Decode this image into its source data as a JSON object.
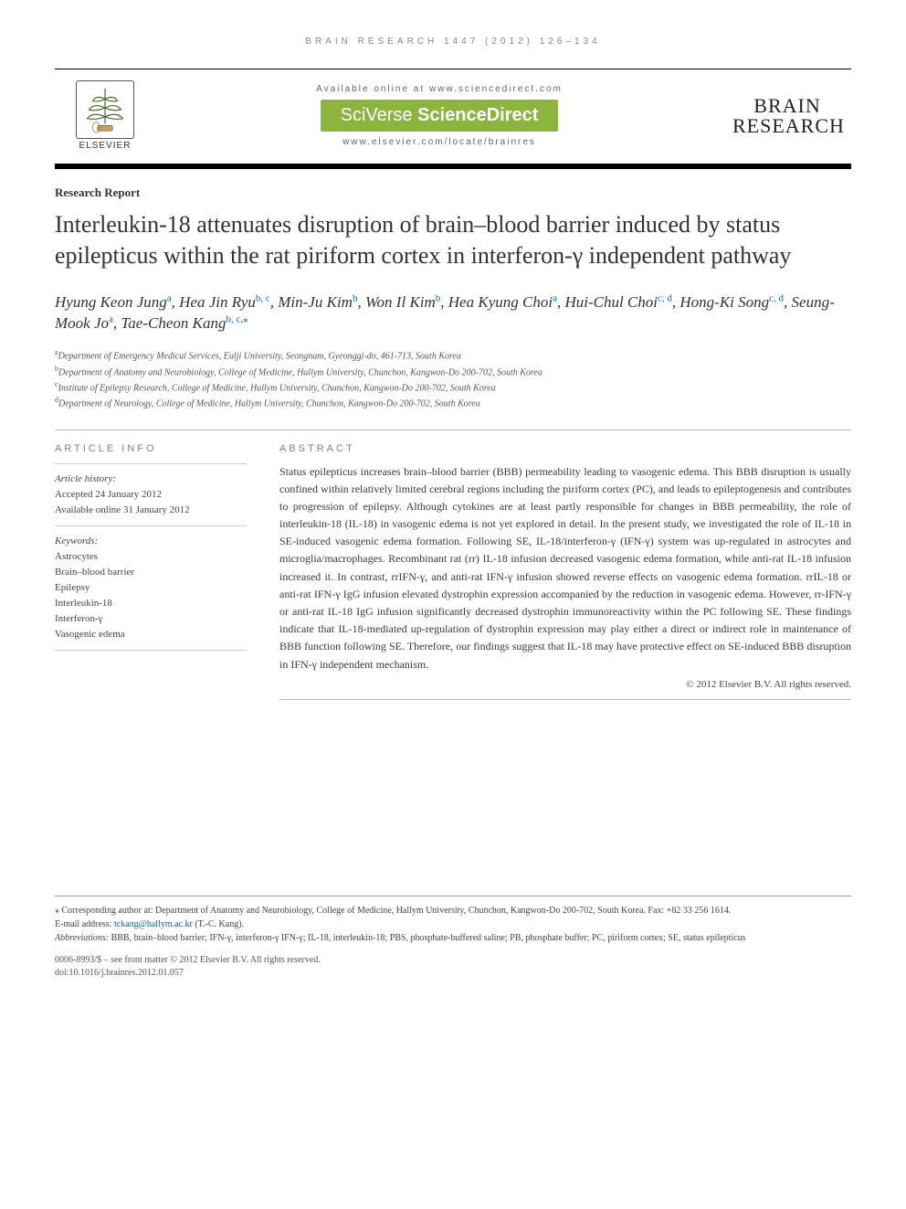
{
  "running_head": "BRAIN RESEARCH 1447 (2012) 126–134",
  "masthead": {
    "elsevier": "ELSEVIER",
    "available_text": "Available online at www.sciencedirect.com",
    "sciverse_light": "SciVerse ",
    "sciverse_bold": "ScienceDirect",
    "locator": "www.elsevier.com/locate/brainres",
    "journal_line1": "BRAIN",
    "journal_line2": "RESEARCH"
  },
  "section_label": "Research Report",
  "title": "Interleukin-18 attenuates disruption of brain–blood barrier induced by status epilepticus within the rat piriform cortex in interferon-γ independent pathway",
  "authors_html": "Hyung Keon Jung<sup class='sup'>a</sup>, Hea Jin Ryu<sup class='sup'>b, c</sup>, Min-Ju Kim<sup class='sup'>b</sup>, Won Il Kim<sup class='sup'>b</sup>, Hea Kyung Choi<sup class='sup'>a</sup>, Hui-Chul Choi<sup class='sup'>c, d</sup>, Hong-Ki Song<sup class='sup'>c, d</sup>, Seung-Mook Jo<sup class='sup'>a</sup>, Tae-Cheon Kang<sup class='sup'>b, c,</sup><sup class='sup'>⁎</sup>",
  "affiliations": [
    {
      "sup": "a",
      "text": "Department of Emergency Medical Services, Eulji University, Seongnam, Gyeonggi-do, 461-713, South Korea"
    },
    {
      "sup": "b",
      "text": "Department of Anatomy and Neurobiology, College of Medicine, Hallym University, Chunchon, Kangwon-Do 200-702, South Korea"
    },
    {
      "sup": "c",
      "text": "Institute of Epilepsy Research, College of Medicine, Hallym University, Chunchon, Kangwon-Do 200-702, South Korea"
    },
    {
      "sup": "d",
      "text": "Department of Neurology, College of Medicine, Hallym University, Chunchon, Kangwon-Do 200-702, South Korea"
    }
  ],
  "article_info_head": "ARTICLE INFO",
  "abstract_head": "ABSTRACT",
  "history": {
    "label": "Article history:",
    "accepted": "Accepted 24 January 2012",
    "online": "Available online 31 January 2012"
  },
  "keywords_label": "Keywords:",
  "keywords": [
    "Astrocytes",
    "Brain–blood barrier",
    "Epilepsy",
    "Interleukin-18",
    "Interferon-γ",
    "Vasogenic edema"
  ],
  "abstract": "Status epilepticus increases brain–blood barrier (BBB) permeability leading to vasogenic edema. This BBB disruption is usually confined within relatively limited cerebral regions including the piriform cortex (PC), and leads to epileptogenesis and contributes to progression of epilepsy. Although cytokines are at least partly responsible for changes in BBB permeability, the role of interleukin-18 (IL-18) in vasogenic edema is not yet explored in detail. In the present study, we investigated the role of IL-18 in SE-induced vasogenic edema formation. Following SE, IL-18/interferon-γ (IFN-γ) system was up-regulated in astrocytes and microglia/macrophages. Recombinant rat (rr) IL-18 infusion decreased vasogenic edema formation, while anti-rat IL-18 infusion increased it. In contrast, rrIFN-γ, and anti-rat IFN-γ infusion showed reverse effects on vasogenic edema formation. rrIL-18 or anti-rat IFN-γ IgG infusion elevated dystrophin expression accompanied by the reduction in vasogenic edema. However, rr-IFN-γ or anti-rat IL-18 IgG infusion significantly decreased dystrophin immunoreactivity within the PC following SE. These findings indicate that IL-18-mediated up-regulation of dystrophin expression may play either a direct or indirect role in maintenance of BBB function following SE. Therefore, our findings suggest that IL-18 may have protective effect on SE-induced BBB disruption in IFN-γ independent mechanism.",
  "copyright": "© 2012 Elsevier B.V. All rights reserved.",
  "footnotes": {
    "corresponding": "⁎ Corresponding author at: Department of Anatomy and Neurobiology, College of Medicine, Hallym University, Chunchon, Kangwon-Do 200-702, South Korea. Fax: +82 33 256 1614.",
    "email_label": "E-mail address: ",
    "email": "tckang@hallym.ac.kr",
    "email_suffix": " (T.-C. Kang).",
    "abbrev_label": "Abbreviations: ",
    "abbrev": "BBB, brain–blood barrier; IFN-γ, interferon-γ IFN-γ; IL-18, interleukin-18; PBS, phosphate-buffered saline; PB, phosphate buffer; PC, piriform cortex; SE, status epilepticus"
  },
  "doi": {
    "line1": "0006-8993/$ – see front matter © 2012 Elsevier B.V. All rights reserved.",
    "line2": "doi:10.1016/j.brainres.2012.01.057"
  }
}
